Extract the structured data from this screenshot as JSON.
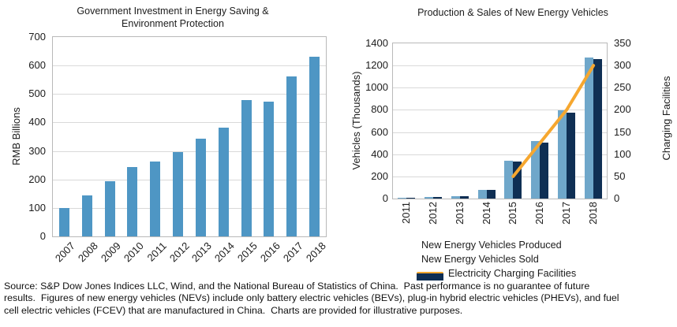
{
  "colors": {
    "grid": "#d9d9d9",
    "plot_border": "#b9b9b9",
    "text": "#1c1c1c",
    "left_chart_bar": "#4E96C4",
    "nev_produced": "#6FA7CA",
    "nev_sold": "#0F2F54",
    "charging_line": "#F6A72F"
  },
  "chart_data": [
    {
      "type": "bar",
      "title_lines": [
        "Government Investment in Energy Saving &",
        "Environment Protection"
      ],
      "categories": [
        "2007",
        "2008",
        "2009",
        "2010",
        "2011",
        "2012",
        "2013",
        "2014",
        "2015",
        "2016",
        "2017",
        "2018"
      ],
      "values": [
        100,
        145,
        193,
        244,
        264,
        296,
        343,
        382,
        480,
        473,
        562,
        630
      ],
      "ylabel": "RMB Billions",
      "ylim": [
        0,
        700
      ],
      "yticks": [
        0,
        100,
        200,
        300,
        400,
        500,
        600,
        700
      ],
      "grid": true,
      "legend": "none",
      "bar_color_key": "left_chart_bar"
    },
    {
      "type": "combo",
      "title": "Production & Sales of New Energy Vehicles",
      "categories": [
        "2011",
        "2012",
        "2013",
        "2014",
        "2015",
        "2016",
        "2017",
        "2018"
      ],
      "series": [
        {
          "name": "New Energy Vehicles Produced",
          "kind": "bar",
          "axis": "left",
          "color_key": "nev_produced",
          "values": [
            8,
            13,
            18,
            78,
            340,
            517,
            794,
            1270
          ]
        },
        {
          "name": "New Energy Vehicles Sold",
          "kind": "bar",
          "axis": "left",
          "color_key": "nev_sold",
          "values": [
            8,
            13,
            18,
            75,
            331,
            507,
            777,
            1256
          ]
        },
        {
          "name": "Electricity Charging Facilities",
          "kind": "line",
          "axis": "right",
          "color_key": "charging_line",
          "values": [
            null,
            null,
            null,
            null,
            50,
            125,
            200,
            300
          ]
        }
      ],
      "ylabel_left": "Vehicles (Thousands)",
      "ylabel_right": "Charging Facilities",
      "ylim_left": [
        0,
        1400
      ],
      "yticks_left": [
        0,
        200,
        400,
        600,
        800,
        1000,
        1200,
        1400
      ],
      "ylim_right": [
        0,
        350
      ],
      "yticks_right": [
        0,
        50,
        100,
        150,
        200,
        250,
        300,
        350
      ],
      "grid": true,
      "legend_position": "bottom"
    }
  ],
  "footer": {
    "lines": [
      "Source: S&P Dow Jones Indices LLC, Wind, and the National Bureau of Statistics of China.  Past performance is no guarantee of future",
      "results.  Figures of new energy vehicles (NEVs) include only battery electric vehicles (BEVs), plug-in hybrid electric vehicles (PHEVs), and fuel",
      "cell electric vehicles (FCEV) that are manufactured in China.  Charts are provided for illustrative purposes."
    ]
  }
}
